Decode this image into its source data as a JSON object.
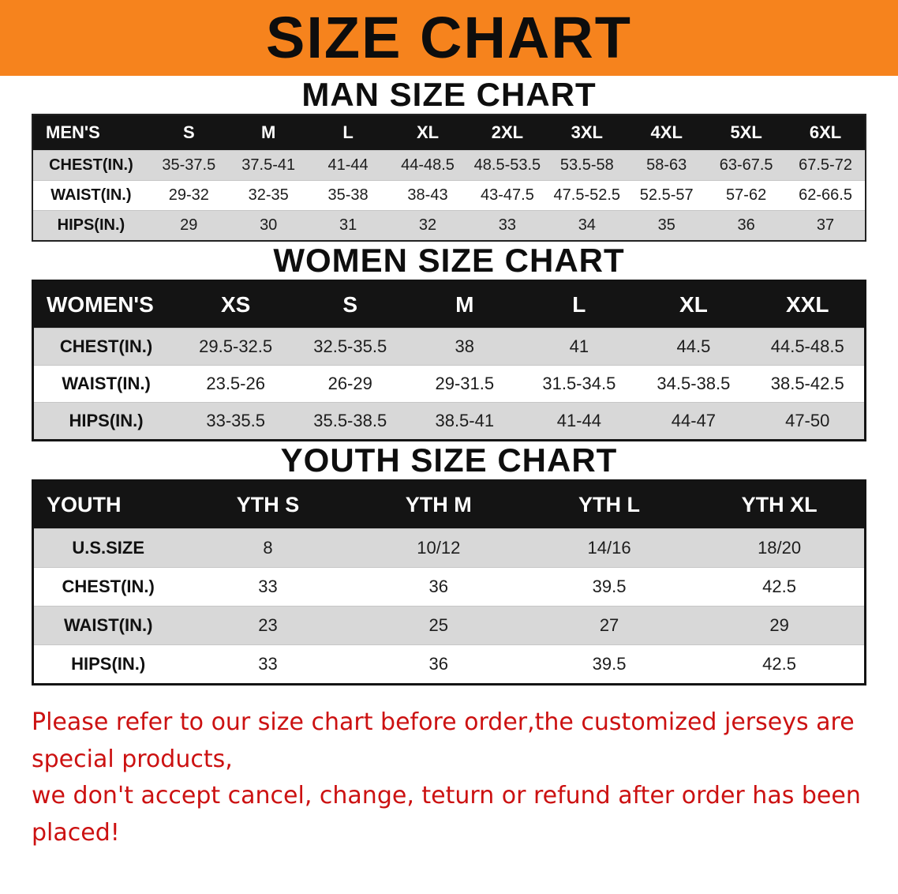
{
  "banner": {
    "title": "SIZE CHART",
    "bg_color": "#f6831d"
  },
  "sections": [
    {
      "id": "men",
      "heading": "MAN SIZE CHART",
      "table": {
        "columns": [
          "MEN'S",
          "S",
          "M",
          "L",
          "XL",
          "2XL",
          "3XL",
          "4XL",
          "5XL",
          "6XL"
        ],
        "rows": [
          {
            "label": "CHEST(IN.)",
            "values": [
              "35-37.5",
              "37.5-41",
              "41-44",
              "44-48.5",
              "48.5-53.5",
              "53.5-58",
              "58-63",
              "63-67.5",
              "67.5-72"
            ]
          },
          {
            "label": "WAIST(IN.)",
            "values": [
              "29-32",
              "32-35",
              "35-38",
              "38-43",
              "43-47.5",
              "47.5-52.5",
              "52.5-57",
              "57-62",
              "62-66.5"
            ]
          },
          {
            "label": "HIPS(IN.)",
            "values": [
              "29",
              "30",
              "31",
              "32",
              "33",
              "34",
              "35",
              "36",
              "37"
            ]
          }
        ]
      }
    },
    {
      "id": "women",
      "heading": "WOMEN SIZE CHART",
      "table": {
        "columns": [
          "WOMEN'S",
          "XS",
          "S",
          "M",
          "L",
          "XL",
          "XXL"
        ],
        "rows": [
          {
            "label": "CHEST(IN.)",
            "values": [
              "29.5-32.5",
              "32.5-35.5",
              "38",
              "41",
              "44.5",
              "44.5-48.5"
            ]
          },
          {
            "label": "WAIST(IN.)",
            "values": [
              "23.5-26",
              "26-29",
              "29-31.5",
              "31.5-34.5",
              "34.5-38.5",
              "38.5-42.5"
            ]
          },
          {
            "label": "HIPS(IN.)",
            "values": [
              "33-35.5",
              "35.5-38.5",
              "38.5-41",
              "41-44",
              "44-47",
              "47-50"
            ]
          }
        ]
      }
    },
    {
      "id": "youth",
      "heading": "YOUTH SIZE CHART",
      "table": {
        "columns": [
          "YOUTH",
          "YTH S",
          "YTH M",
          "YTH L",
          "YTH XL"
        ],
        "rows": [
          {
            "label": "U.S.SIZE",
            "values": [
              "8",
              "10/12",
              "14/16",
              "18/20"
            ]
          },
          {
            "label": "CHEST(IN.)",
            "values": [
              "33",
              "36",
              "39.5",
              "42.5"
            ]
          },
          {
            "label": "WAIST(IN.)",
            "values": [
              "23",
              "25",
              "27",
              "29"
            ]
          },
          {
            "label": "HIPS(IN.)",
            "values": [
              "33",
              "36",
              "39.5",
              "42.5"
            ]
          }
        ]
      }
    }
  ],
  "footer": {
    "text_color": "#cc1111",
    "lines": [
      "Please refer to our size chart before order,the customized jerseys are special products,",
      "we don't accept cancel, change, teturn or refund after order has been placed!"
    ]
  }
}
